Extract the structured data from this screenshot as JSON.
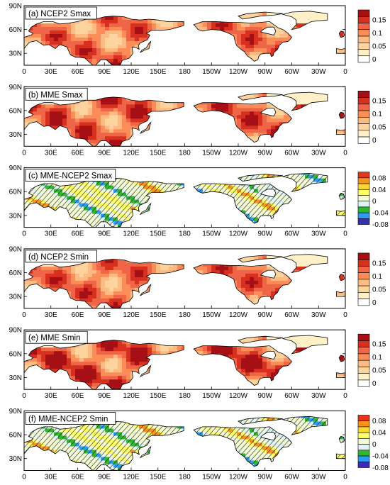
{
  "figure": {
    "panels": [
      {
        "title": "(a) NCEP2 Smax",
        "scale": "warm",
        "field": "smax_obs",
        "hatch": false
      },
      {
        "title": "(b) MME Smax",
        "scale": "warm",
        "field": "smax_mme",
        "hatch": false
      },
      {
        "title": "(c) MME-NCEP2 Smax",
        "scale": "diff",
        "field": "smax_diff",
        "hatch": true
      },
      {
        "title": "(d) NCEP2 Smin",
        "scale": "warm",
        "field": "smin_obs",
        "hatch": false
      },
      {
        "title": "(e) MME Smin",
        "scale": "warm",
        "field": "smin_mme",
        "hatch": false
      },
      {
        "title": "(f) MME-NCEP2 Smin",
        "scale": "diff",
        "field": "smin_diff",
        "hatch": true
      }
    ],
    "lat_ticks": [
      "90N",
      "60N",
      "30N"
    ],
    "lon_ticks": [
      "0",
      "30E",
      "60E",
      "90E",
      "120E",
      "150E",
      "180",
      "150W",
      "120W",
      "90W",
      "60W",
      "30W",
      "0"
    ],
    "colorbars": {
      "warm": {
        "labels": [
          "0.15",
          "0.1",
          "0.05",
          "0"
        ],
        "colors": [
          "#a50f15",
          "#d7301f",
          "#ef6548",
          "#fc8d59",
          "#fdbb84",
          "#fdd49e",
          "#fff0c8",
          "#ffffff"
        ]
      },
      "diff": {
        "labels": [
          "0.08",
          "0.04",
          "0",
          "-0.04",
          "-0.08"
        ],
        "colors": [
          "#e8341c",
          "#f7941d",
          "#fdd835",
          "#ffff66",
          "#f2fbd4",
          "#dff3f3",
          "#2eb82e",
          "#2a9df4",
          "#3b2db0"
        ]
      }
    },
    "colors": {
      "land_missing": "#ffffff",
      "warm_base": "#f4a261",
      "diff_base": "#e6f6e6"
    }
  }
}
